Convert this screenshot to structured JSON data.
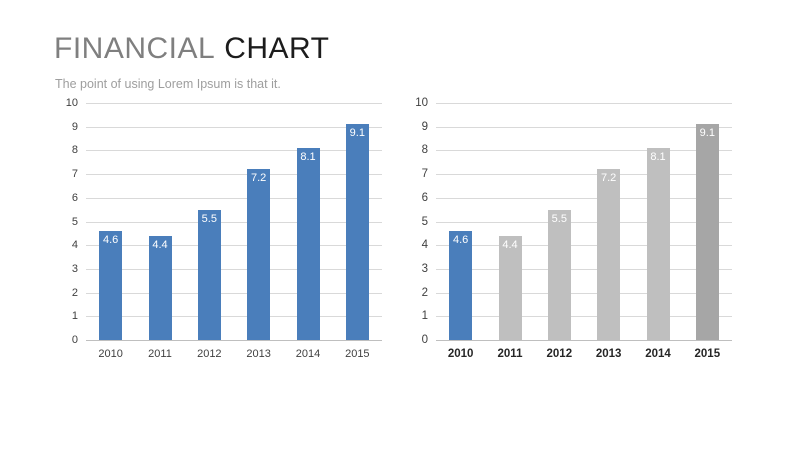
{
  "slide": {
    "title_primary": "FINANCIAL",
    "title_secondary": "CHART",
    "subtitle": "The point of using Lorem Ipsum is that it."
  },
  "colors": {
    "accent_blue": "#4A7EBB",
    "bar_gray_light": "#BFBFBF",
    "bar_gray_dark": "#A6A6A6",
    "gridline": "#D9D9D9",
    "axis_baseline": "#BFBFBF",
    "axis_text": "#404040",
    "title_gray": "#7F7F7F",
    "title_black": "#1C1C1C",
    "subtitle_gray": "#9E9E9E",
    "value_label": "#FFFFFF"
  },
  "chart_data": [
    {
      "type": "bar",
      "title": "",
      "categories": [
        "2010",
        "2011",
        "2012",
        "2013",
        "2014",
        "2015"
      ],
      "values": [
        4.6,
        4.4,
        5.5,
        7.2,
        8.1,
        9.1
      ],
      "data_labels": [
        "4.6",
        "4.4",
        "5.5",
        "7.2",
        "8.1",
        "9.1"
      ],
      "yticks": [
        0,
        1,
        2,
        3,
        4,
        5,
        6,
        7,
        8,
        9,
        10
      ],
      "ylim": [
        0,
        10
      ],
      "ytick_step": 1,
      "grid": true,
      "legend": "none",
      "xlabel": "",
      "ylabel": "",
      "bar_colors": [
        "#4A7EBB",
        "#4A7EBB",
        "#4A7EBB",
        "#4A7EBB",
        "#4A7EBB",
        "#4A7EBB"
      ],
      "value_label_color": "#FFFFFF"
    },
    {
      "type": "bar",
      "title": "",
      "categories": [
        "2010",
        "2011",
        "2012",
        "2013",
        "2014",
        "2015"
      ],
      "values": [
        4.6,
        4.4,
        5.5,
        7.2,
        8.1,
        9.1
      ],
      "data_labels": [
        "4.6",
        "4.4",
        "5.5",
        "7.2",
        "8.1",
        "9.1"
      ],
      "yticks": [
        0,
        1,
        2,
        3,
        4,
        5,
        6,
        7,
        8,
        9,
        10
      ],
      "ylim": [
        0,
        10
      ],
      "ytick_step": 1,
      "grid": true,
      "legend": "none",
      "xlabel": "",
      "ylabel": "",
      "bar_colors": [
        "#4A7EBB",
        "#BFBFBF",
        "#BFBFBF",
        "#BFBFBF",
        "#BFBFBF",
        "#A6A6A6"
      ],
      "value_label_color": "#FFFFFF"
    }
  ]
}
